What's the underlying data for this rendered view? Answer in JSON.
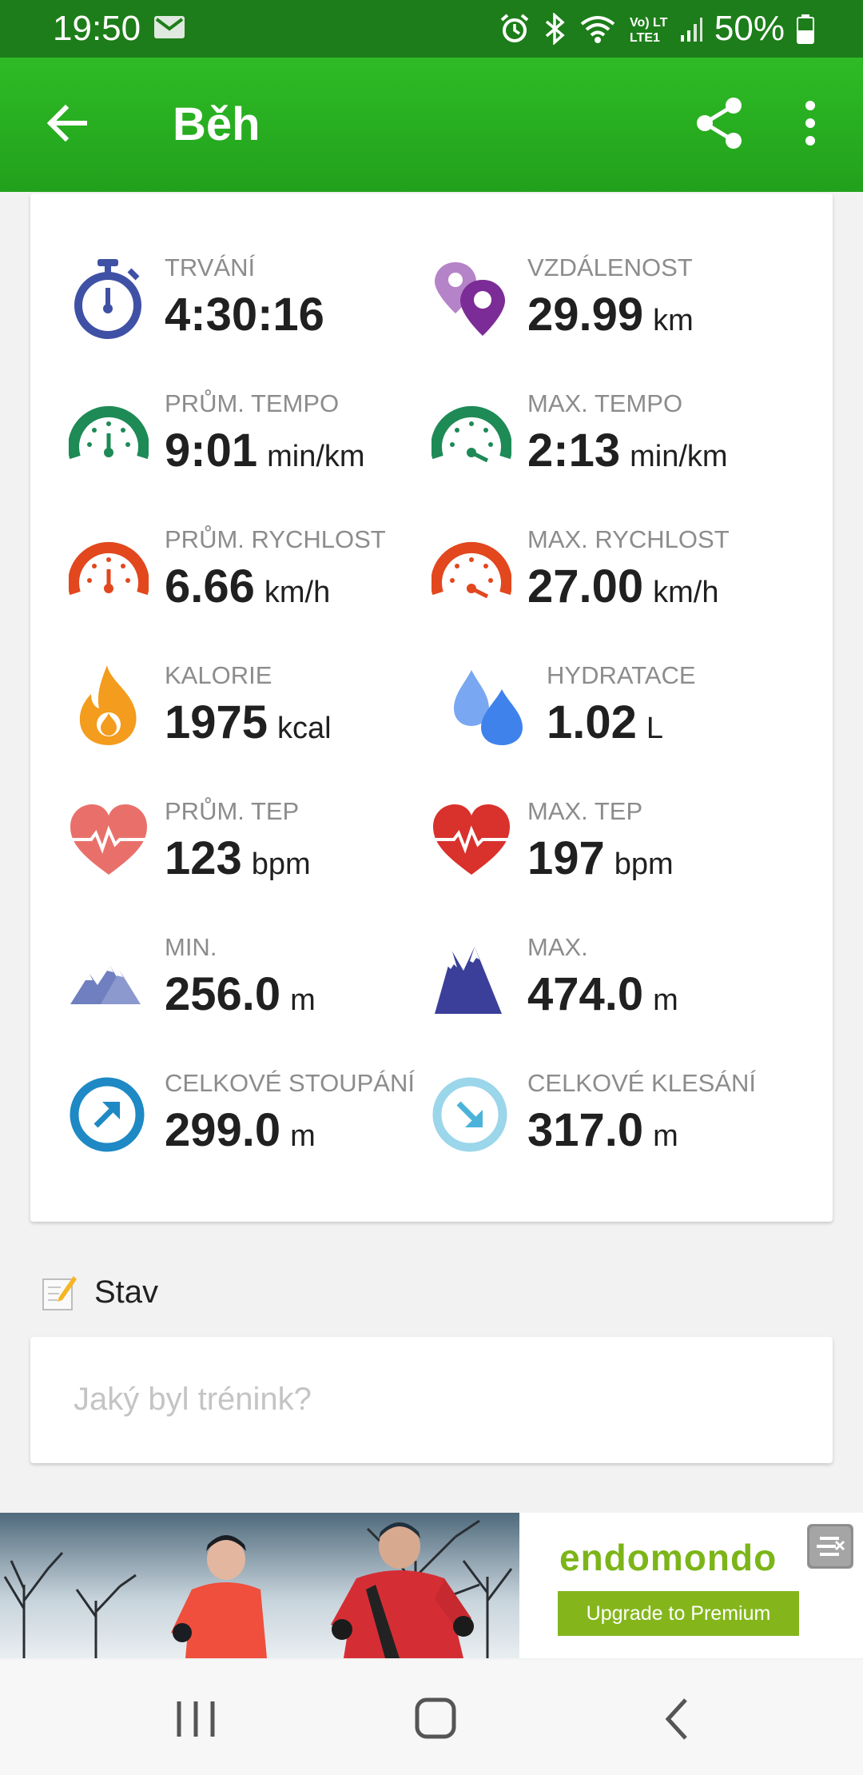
{
  "status_bar": {
    "time": "19:50",
    "battery": "50%",
    "network": "Vo) LTE1",
    "icons": [
      "mail-icon",
      "alarm-icon",
      "bluetooth-icon",
      "wifi-icon",
      "signal-icon",
      "battery-icon"
    ]
  },
  "app_bar": {
    "title": "Běh",
    "icons": [
      "back-arrow-icon",
      "share-icon",
      "more-vert-icon"
    ]
  },
  "stats": [
    {
      "label": "TRVÁNÍ",
      "value": "4:30:16",
      "unit": "",
      "icon": "stopwatch-icon"
    },
    {
      "label": "VZDÁLENOST",
      "value": "29.99",
      "unit": "km",
      "icon": "location-pins-icon"
    },
    {
      "label": "PRŮM. TEMPO",
      "value": "9:01",
      "unit": "min/km",
      "icon": "gauge-pace-icon"
    },
    {
      "label": "MAX. TEMPO",
      "value": "2:13",
      "unit": "min/km",
      "icon": "gauge-max-pace-icon"
    },
    {
      "label": "PRŮM. RYCHLOST",
      "value": "6.66",
      "unit": "km/h",
      "icon": "speedometer-icon"
    },
    {
      "label": "MAX. RYCHLOST",
      "value": "27.00",
      "unit": "km/h",
      "icon": "speedometer-max-icon"
    },
    {
      "label": "KALORIE",
      "value": "1975",
      "unit": "kcal",
      "icon": "flame-icon"
    },
    {
      "label": "HYDRATACE",
      "value": "1.02",
      "unit": "L",
      "icon": "water-drops-icon"
    },
    {
      "label": "PRŮM. TEP",
      "value": "123",
      "unit": "bpm",
      "icon": "heart-rate-icon"
    },
    {
      "label": "MAX. TEP",
      "value": "197",
      "unit": "bpm",
      "icon": "heart-rate-max-icon"
    },
    {
      "label": "MIN.",
      "value": "256.0",
      "unit": "m",
      "icon": "mountain-low-icon"
    },
    {
      "label": "MAX.",
      "value": "474.0",
      "unit": "m",
      "icon": "mountain-high-icon"
    },
    {
      "label": "CELKOVÉ STOUPÁNÍ",
      "value": "299.0",
      "unit": "m",
      "icon": "ascent-arrow-icon"
    },
    {
      "label": "CELKOVÉ KLESÁNÍ",
      "value": "317.0",
      "unit": "m",
      "icon": "descent-arrow-icon"
    }
  ],
  "status_section": {
    "title": "Stav",
    "placeholder": "Jaký byl trénink?",
    "value": ""
  },
  "ad_banner": {
    "brand": "endomondo",
    "button_label": "Upgrade to Premium"
  },
  "nav_bar": {
    "icons": [
      "recent-apps-icon",
      "home-icon",
      "back-icon"
    ]
  },
  "colors": {
    "app_bar": "#22a11c",
    "status_bar": "#1d7d1a",
    "brand_green": "#84b61c"
  }
}
